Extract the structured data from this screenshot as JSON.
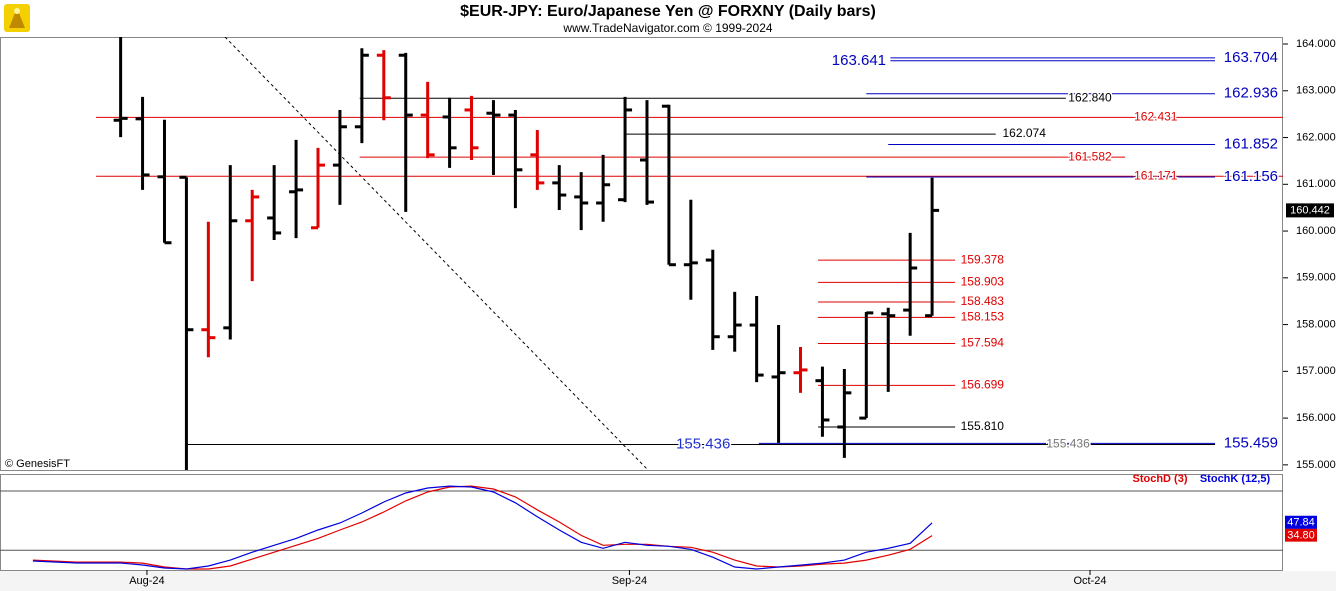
{
  "header": {
    "title": "$EUR-JPY:  Euro/Japanese Yen @ FORXNY  (Daily bars)",
    "subtitle": "www.TradeNavigator.com © 1999-2024",
    "credit": "© GenesisFT"
  },
  "chart_data": [
    {
      "type": "ohlc",
      "xlim": [
        -5.5,
        53
      ],
      "ylim": [
        154.89,
        164.15
      ],
      "yticks": [
        {
          "value": 164,
          "label": "164.000"
        },
        {
          "value": 163,
          "label": "163.000"
        },
        {
          "value": 162,
          "label": "162.000"
        },
        {
          "value": 161,
          "label": "161.000"
        },
        {
          "value": 160,
          "label": "160.000"
        },
        {
          "value": 159,
          "label": "159.000"
        },
        {
          "value": 158,
          "label": "158.000"
        },
        {
          "value": 157,
          "label": "157.000"
        },
        {
          "value": 156,
          "label": "156.000"
        },
        {
          "value": 155,
          "label": "155.000"
        }
      ],
      "xticks": [
        {
          "value": 1.2,
          "label": "Aug-24"
        },
        {
          "value": 23.2,
          "label": "Sep-24"
        },
        {
          "value": 44.2,
          "label": "Oct-24"
        }
      ],
      "high": [
        164.15,
        162.87,
        162.38,
        161.15,
        160.2,
        161.41,
        160.88,
        161.41,
        161.95,
        161.78,
        162.59,
        163.91,
        163.87,
        163.81,
        163.19,
        162.85,
        162.89,
        162.8,
        162.59,
        162.16,
        161.41,
        161.26,
        161.63,
        162.87,
        162.8,
        162.7,
        160.67,
        159.6,
        158.7,
        158.61,
        157.99,
        157.52,
        157.1,
        157.05,
        158.27,
        158.36,
        159.96,
        161.14
      ],
      "low": [
        162.01,
        160.88,
        159.75,
        154.85,
        157.3,
        157.68,
        158.93,
        159.81,
        159.85,
        160.07,
        160.56,
        161.88,
        162.37,
        160.41,
        161.56,
        161.35,
        161.52,
        161.2,
        160.49,
        160.88,
        160.45,
        160.02,
        160.2,
        160.62,
        160.56,
        159.28,
        158.53,
        157.46,
        157.42,
        156.77,
        155.47,
        156.54,
        155.6,
        155.15,
        156,
        156.56,
        157.76,
        158.19
      ],
      "open": [
        162.37,
        162.4,
        161.16,
        161.15,
        157.89,
        157.93,
        160.22,
        160.28,
        160.84,
        160.07,
        161.41,
        162.23,
        163.76,
        163.76,
        162.48,
        162.44,
        162.59,
        162.52,
        162.48,
        161.63,
        161.03,
        160.73,
        160.6,
        160.67,
        161.52,
        162.67,
        159.28,
        159.38,
        157.74,
        157.99,
        156.88,
        156.97,
        156.8,
        155.81,
        156,
        158.23,
        158.31,
        158.19
      ],
      "close": [
        162.41,
        161.2,
        159.75,
        157.89,
        157.72,
        160.22,
        160.73,
        159.96,
        160.88,
        161.41,
        162.23,
        163.76,
        162.85,
        162.48,
        161.63,
        161.78,
        161.78,
        162.48,
        161.31,
        161.03,
        160.77,
        160.6,
        160.99,
        162.59,
        160.62,
        159.28,
        159.32,
        157.74,
        157.99,
        156.92,
        156.97,
        157.03,
        155.96,
        156.54,
        158.25,
        158.19,
        159.21,
        160.442
      ],
      "colors": [
        "#000000",
        "#000000",
        "#000000",
        "#000000",
        "#e00000",
        "#000000",
        "#e00000",
        "#000000",
        "#000000",
        "#e00000",
        "#000000",
        "#000000",
        "#e00000",
        "#000000",
        "#e00000",
        "#000000",
        "#e00000",
        "#000000",
        "#000000",
        "#e00000",
        "#000000",
        "#000000",
        "#000000",
        "#000000",
        "#000000",
        "#000000",
        "#000000",
        "#000000",
        "#000000",
        "#000000",
        "#000000",
        "#e00000",
        "#000000",
        "#000000",
        "#000000",
        "#000000",
        "#000000",
        "#000000"
      ],
      "lines": [
        {
          "value": 163.704,
          "color": "#0000c0",
          "from": 35.1,
          "to": 49.9,
          "label_at": 50.3,
          "anchor": "start",
          "size": "large"
        },
        {
          "value": 163.641,
          "color": "#0000c0",
          "from": 35.1,
          "to": 49.9,
          "label_at": 34.9,
          "anchor": "end",
          "size": "large"
        },
        {
          "value": 162.936,
          "color": "#0000c0",
          "from": 34,
          "to": 49.9,
          "label_at": 50.3,
          "anchor": "start",
          "size": "large"
        },
        {
          "value": 162.84,
          "value_label": "162.840",
          "color": "#000000",
          "from": 10.9,
          "to": 43.1,
          "label_at": 44.2,
          "anchor": "middle",
          "size": "small"
        },
        {
          "value": 162.431,
          "color": "#e00000",
          "from": -1.12,
          "to": 53,
          "label_at": 47.2,
          "anchor": "middle",
          "size": "small"
        },
        {
          "value": 162.074,
          "color": "#000000",
          "from": 23,
          "to": 39.9,
          "label_at": 41.2,
          "anchor": "middle",
          "size": "small"
        },
        {
          "value": 161.852,
          "color": "#0000c0",
          "from": 35,
          "to": 49.9,
          "label_at": 50.3,
          "anchor": "start",
          "size": "large"
        },
        {
          "value": 161.582,
          "color": "#e00000",
          "from": 10.9,
          "to": 45.8,
          "label_at": 44.2,
          "anchor": "middle",
          "size": "small"
        },
        {
          "value": 161.171,
          "color": "#e00000",
          "from": -1.12,
          "to": 53,
          "label_at": 47.2,
          "anchor": "middle",
          "size": "small"
        },
        {
          "value": 161.156,
          "color": "#0000c0",
          "from": 34,
          "to": 49.9,
          "label_at": 50.3,
          "anchor": "start",
          "size": "large"
        },
        {
          "value": 159.378,
          "color": "#e00000",
          "from": 31.8,
          "to": 38.05,
          "label_at": 38.3,
          "anchor": "start",
          "size": "small"
        },
        {
          "value": 158.903,
          "color": "#e00000",
          "from": 31.8,
          "to": 38.05,
          "label_at": 38.3,
          "anchor": "start",
          "size": "small"
        },
        {
          "value": 158.483,
          "color": "#e00000",
          "from": 31.8,
          "to": 38.05,
          "label_at": 38.3,
          "anchor": "start",
          "size": "small"
        },
        {
          "value": 158.153,
          "color": "#e00000",
          "from": 31.8,
          "to": 38.05,
          "label_at": 38.3,
          "anchor": "start",
          "size": "small"
        },
        {
          "value": 157.594,
          "color": "#e00000",
          "from": 31.8,
          "to": 38.05,
          "label_at": 38.3,
          "anchor": "start",
          "size": "small"
        },
        {
          "value": 156.699,
          "color": "#e00000",
          "from": 31.8,
          "to": 38.05,
          "label_at": 38.3,
          "anchor": "start",
          "size": "small"
        },
        {
          "value": 155.81,
          "value_label": "155.810",
          "color": "#000000",
          "from": 31.8,
          "to": 38.05,
          "label_at": 38.3,
          "anchor": "start",
          "size": "small"
        },
        {
          "value": 155.436,
          "color": "#000000",
          "from": 3,
          "to": 49.9,
          "label_at": 27.8,
          "anchor": "end",
          "label_color": "#2030d0",
          "size": "large"
        },
        {
          "value": 155.459,
          "color": "#0000c0",
          "from": 29.1,
          "to": 49.9,
          "label_at": 50.3,
          "anchor": "start",
          "size": "large"
        },
        {
          "value": 155.436,
          "label_at": 43.2,
          "anchor": "middle",
          "label_color": "#777777",
          "size": "small"
        }
      ]
    },
    {
      "type": "line",
      "xlim": [
        -5.5,
        53
      ],
      "ylim": [
        0,
        96.2
      ],
      "levels": [
        80,
        20
      ],
      "x": [
        -4,
        -3,
        -2,
        -1,
        0,
        1,
        2,
        3,
        4,
        5,
        6,
        7,
        8,
        9,
        10,
        11,
        12,
        13,
        14,
        15,
        16,
        17,
        18,
        19,
        20,
        21,
        22,
        23,
        24,
        25,
        26,
        27,
        28,
        29,
        30,
        31,
        32,
        33,
        34,
        35,
        36,
        37
      ],
      "series": [
        {
          "name": "StochD (3)",
          "color": "#e00000",
          "values": [
            10,
            9,
            8,
            8,
            8,
            7,
            3,
            1,
            1,
            4,
            11,
            18,
            25,
            32,
            40.5,
            48.6,
            58.7,
            70,
            79,
            84,
            85,
            82,
            74,
            61,
            48.6,
            35,
            25,
            26,
            26,
            24,
            23,
            18,
            10,
            4,
            3,
            4,
            6,
            7,
            10,
            15,
            21,
            34.8
          ],
          "value_labels": [
            null,
            null,
            null,
            null,
            null,
            null,
            null,
            null,
            null,
            null,
            null,
            null,
            null,
            null,
            null,
            null,
            null,
            null,
            null,
            null,
            null,
            null,
            null,
            null,
            null,
            null,
            null,
            null,
            null,
            null,
            null,
            null,
            null,
            null,
            null,
            null,
            null,
            null,
            null,
            null,
            null,
            "34.80"
          ]
        },
        {
          "name": "StochK (12,5)",
          "color": "#0000e0",
          "values": [
            9.1,
            8.1,
            7.1,
            7.1,
            7.1,
            5.1,
            2,
            1,
            4,
            10,
            18,
            25,
            32,
            40.5,
            47.6,
            57.7,
            68.9,
            78,
            83,
            85,
            84,
            79,
            68,
            54,
            40.5,
            28,
            22,
            28,
            25,
            24,
            21,
            13,
            3,
            1,
            3,
            5,
            7,
            10,
            18,
            22,
            27,
            47.84
          ]
        }
      ]
    }
  ]
}
